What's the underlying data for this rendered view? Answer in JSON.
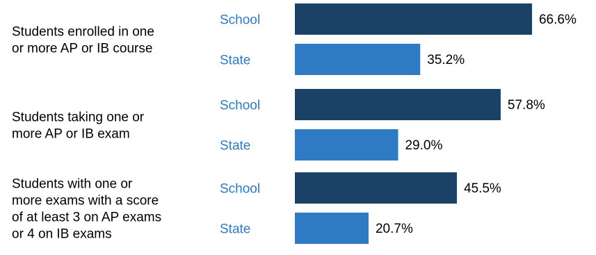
{
  "chart_data": {
    "type": "bar",
    "orientation": "horizontal",
    "categories": [
      [
        "Students enrolled in one",
        "or more AP or IB course"
      ],
      [
        "Students taking one or",
        "more AP or IB exam"
      ],
      [
        "Students with one or",
        "more exams with a score",
        "of at least 3 on AP exams",
        "or 4 on IB exams"
      ]
    ],
    "series": [
      {
        "name": "School",
        "color": "#1b4266",
        "values": [
          66.6,
          57.8,
          45.5
        ],
        "labels": [
          "66.6%",
          "57.8%",
          "45.5%"
        ]
      },
      {
        "name": "State",
        "color": "#2e7bc4",
        "values": [
          35.2,
          29.0,
          20.7
        ],
        "labels": [
          "35.2%",
          "29.0%",
          "20.7%"
        ]
      }
    ],
    "series_label_color": "#2e7bc4",
    "xlim": [
      0,
      100
    ],
    "grid": false,
    "legend": "none"
  }
}
